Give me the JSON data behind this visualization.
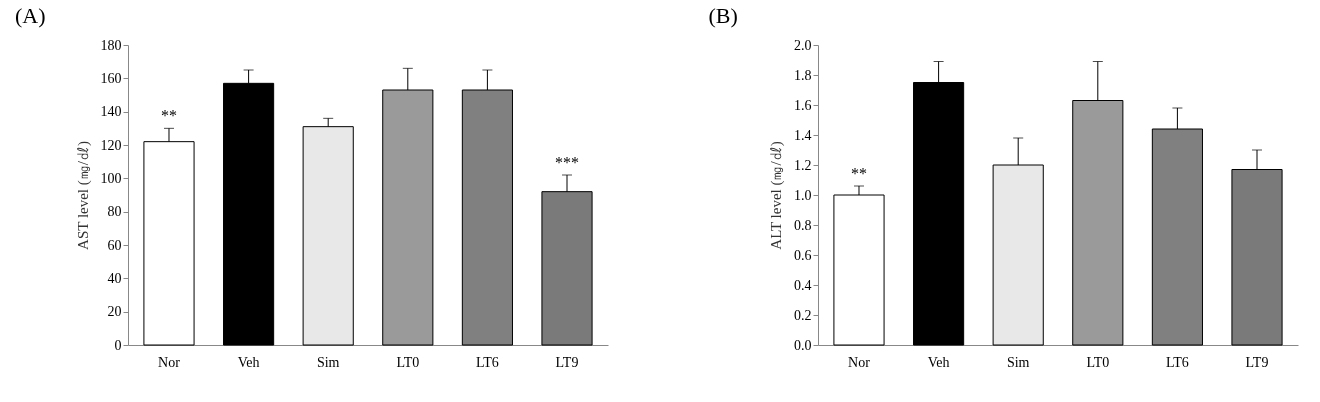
{
  "chart_data": [
    {
      "type": "bar",
      "title": "(A)",
      "ylabel": "AST level (㎎/㎗)",
      "categories": [
        "Nor",
        "Veh",
        "Sim",
        "LT0",
        "LT6",
        "LT9"
      ],
      "values": [
        122,
        157,
        131,
        153,
        153,
        92
      ],
      "colors": [
        "#ffffff",
        "#000000",
        "#e8e8e8",
        "#9a9a9a",
        "#808080",
        "#7a7a7a"
      ],
      "errors": [
        [
          122,
          130
        ],
        [
          157,
          165
        ],
        [
          131,
          136
        ],
        [
          153,
          166
        ],
        [
          153,
          165
        ],
        [
          92,
          102
        ]
      ],
      "ylim": [
        0,
        180
      ],
      "yticks": [
        0,
        20,
        40,
        60,
        80,
        100,
        120,
        140,
        160,
        180
      ],
      "grid": false,
      "legend": false,
      "annotations": [
        {
          "text": "**",
          "x": "Nor",
          "y": 130
        },
        {
          "text": "***",
          "x": "LT9",
          "y": 102
        }
      ]
    },
    {
      "type": "bar",
      "title": "(B)",
      "ylabel": "ALT level (㎎/㎗)",
      "categories": [
        "Nor",
        "Veh",
        "Sim",
        "LT0",
        "LT6",
        "LT9"
      ],
      "values": [
        1.0,
        1.75,
        1.2,
        1.63,
        1.44,
        1.17
      ],
      "colors": [
        "#ffffff",
        "#000000",
        "#e8e8e8",
        "#9a9a9a",
        "#808080",
        "#7a7a7a"
      ],
      "errors": [
        [
          1.0,
          1.06
        ],
        [
          1.75,
          1.89
        ],
        [
          1.2,
          1.38
        ],
        [
          1.63,
          1.89
        ],
        [
          1.44,
          1.58
        ],
        [
          1.17,
          1.3
        ]
      ],
      "ylim": [
        0,
        2.0
      ],
      "yticks": [
        {
          "value": 0,
          "label": "0.0"
        },
        {
          "value": 0.2,
          "label": "0.2"
        },
        {
          "value": 0.4,
          "label": "0.4"
        },
        {
          "value": 0.6,
          "label": "0.6"
        },
        {
          "value": 0.8,
          "label": "0.8"
        },
        {
          "value": 1.0,
          "label": "1.0"
        },
        {
          "value": 1.2,
          "label": "1.2"
        },
        {
          "value": 1.4,
          "label": "1.4"
        },
        {
          "value": 1.6,
          "label": "1.6"
        },
        {
          "value": 1.8,
          "label": "1.8"
        },
        {
          "value": 2.0,
          "label": "2.0"
        }
      ],
      "grid": false,
      "legend": false,
      "annotations": [
        {
          "text": "**",
          "x": "Nor",
          "y": 1.06
        }
      ]
    }
  ]
}
